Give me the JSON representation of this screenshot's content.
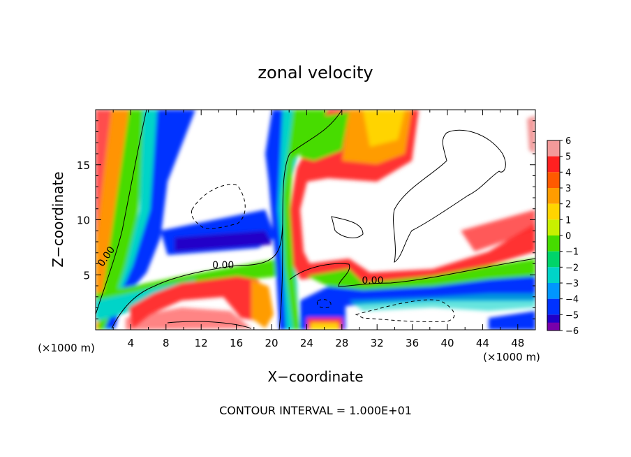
{
  "chart_data": {
    "type": "heatmap",
    "title": "zonal velocity",
    "xlabel": "X−coordinate",
    "ylabel": "Z−coordinate",
    "x_unit": "(×1000 m)",
    "z_unit": "(×1000 m)",
    "xlim": [
      0,
      50
    ],
    "ylim": [
      0,
      20
    ],
    "x_ticks": [
      4,
      8,
      12,
      16,
      20,
      24,
      28,
      32,
      36,
      40,
      44,
      48
    ],
    "y_ticks": [
      5,
      10,
      15
    ],
    "colorbar": {
      "levels": [
        6,
        5,
        4,
        3,
        2,
        1,
        0,
        -1,
        -2,
        -3,
        -4,
        -5,
        -6
      ],
      "level_labels": [
        "6",
        "5",
        "4",
        "3",
        "2",
        "1",
        "0",
        "−1",
        "−2",
        "−3",
        "−4",
        "−5",
        "−6"
      ],
      "colors": [
        "#f39a9a",
        "#ff2020",
        "#ff5a00",
        "#ff9c00",
        "#ffd400",
        "#c8f000",
        "#46dc00",
        "#00d46a",
        "#00d4c8",
        "#0096ff",
        "#0032ff",
        "#2000c8",
        "#7800aa"
      ]
    },
    "contour_labels": [
      {
        "text": "0.00",
        "x": 1.5,
        "z": 6.5
      },
      {
        "text": "0.00",
        "x": 14.5,
        "z": 5.6
      },
      {
        "text": "0.00",
        "x": 31.5,
        "z": 4.2
      }
    ],
    "footer": "CONTOUR INTERVAL = 1.000E+01"
  }
}
